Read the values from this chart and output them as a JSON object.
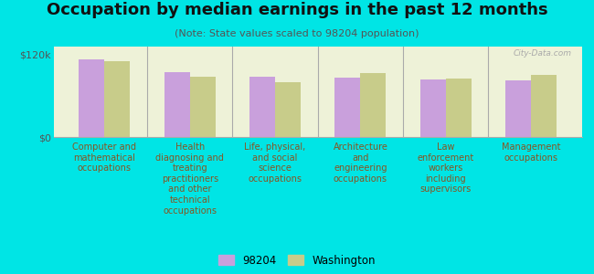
{
  "title": "Occupation by median earnings in the past 12 months",
  "subtitle": "(Note: State values scaled to 98204 population)",
  "categories": [
    "Computer and\nmathematical\noccupations",
    "Health\ndiagnosing and\ntreating\npractitioners\nand other\ntechnical\noccupations",
    "Life, physical,\nand social\nscience\noccupations",
    "Architecture\nand\nengineering\noccupations",
    "Law\nenforcement\nworkers\nincluding\nsupervisors",
    "Management\noccupations"
  ],
  "values_98204": [
    113000,
    95000,
    88000,
    87000,
    84000,
    82000
  ],
  "values_washington": [
    110000,
    88000,
    80000,
    93000,
    85000,
    90000
  ],
  "color_98204": "#c9a0dc",
  "color_washington": "#c8cc8a",
  "background_outer": "#00e5e5",
  "background_plot": "#eef2d8",
  "ylabel_ticks": [
    "$0",
    "$120k"
  ],
  "yticks": [
    0,
    120000
  ],
  "legend_98204": "98204",
  "legend_washington": "Washington",
  "watermark": "City-Data.com",
  "title_fontsize": 13,
  "subtitle_fontsize": 8,
  "label_fontsize": 7,
  "label_color": "#885522"
}
